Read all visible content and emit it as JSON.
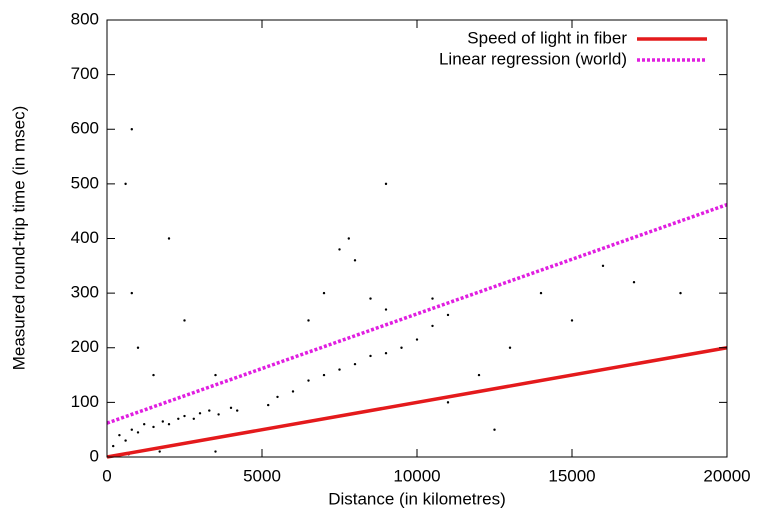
{
  "chart_data": {
    "type": "scatter",
    "xlabel": "Distance (in kilometres)",
    "ylabel": "Measured round-trip time (in msec)",
    "xlim": [
      0,
      20000
    ],
    "xticks": [
      0,
      5000,
      10000,
      15000,
      20000
    ],
    "ylim": [
      0,
      800
    ],
    "yticks": [
      0,
      100,
      200,
      300,
      400,
      500,
      600,
      700,
      800
    ],
    "legend": "top-right",
    "series": [
      {
        "color": "#000000",
        "mode": "points",
        "x": [
          200,
          400,
          600,
          800,
          1000,
          1200,
          1500,
          1800,
          2000,
          2300,
          2500,
          2800,
          3000,
          3300,
          3600,
          4000,
          4200,
          800,
          800,
          1000,
          1500,
          2500,
          3500,
          5200,
          5500,
          6000,
          6500,
          7000,
          7500,
          8000,
          8500,
          9000,
          9500,
          10000,
          10500,
          11000,
          7500,
          8000,
          7800,
          8500,
          9000,
          10500,
          7000,
          6500,
          12000,
          13000,
          14000,
          15000,
          16000,
          17000,
          18500,
          600,
          2000,
          9000,
          5000,
          11000,
          700,
          1700,
          3500,
          12500
        ],
        "values": [
          20,
          40,
          30,
          50,
          45,
          60,
          55,
          65,
          60,
          70,
          75,
          70,
          80,
          85,
          78,
          90,
          85,
          300,
          600,
          200,
          150,
          250,
          150,
          95,
          110,
          120,
          140,
          150,
          160,
          170,
          185,
          190,
          200,
          215,
          240,
          260,
          380,
          360,
          400,
          290,
          270,
          290,
          300,
          250,
          150,
          200,
          300,
          250,
          350,
          320,
          300,
          500,
          400,
          500,
          50,
          100,
          5,
          10,
          10,
          50
        ]
      },
      {
        "name": "Speed of light in fiber",
        "color": "#e41a1c",
        "mode": "line",
        "dash": "solid",
        "x": [
          0,
          20000
        ],
        "values": [
          0,
          200
        ]
      },
      {
        "name": "Linear regression (world)",
        "color": "#e01ee0",
        "mode": "line",
        "dash": "dotted",
        "x": [
          0,
          20000
        ],
        "values": [
          62,
          462
        ]
      }
    ]
  }
}
